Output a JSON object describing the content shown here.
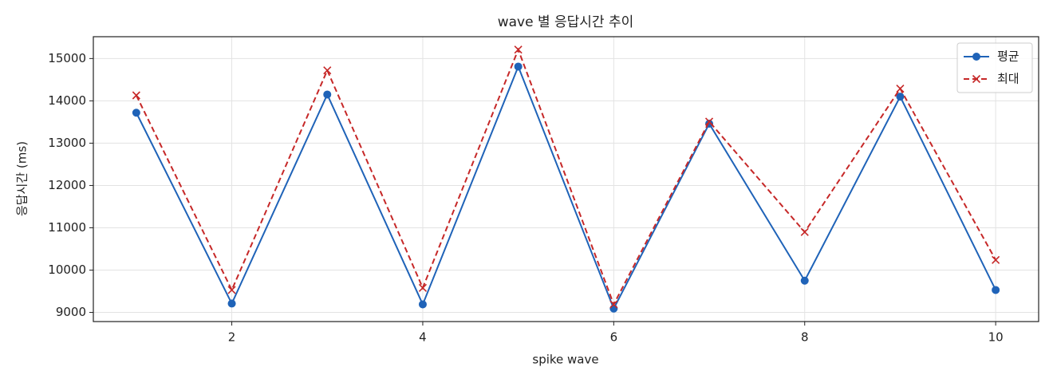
{
  "chart_data": {
    "type": "line",
    "title": "wave 별 응답시간 추이",
    "xlabel": "spike wave",
    "ylabel": "응답시간 (ms)",
    "x": [
      1,
      2,
      3,
      4,
      5,
      6,
      7,
      8,
      9,
      10
    ],
    "series": [
      {
        "name": "평균",
        "color": "#1f63b8",
        "marker": "o",
        "linestyle": "solid",
        "values": [
          13720,
          9210,
          14150,
          9190,
          14810,
          9090,
          13460,
          9750,
          14100,
          9530
        ]
      },
      {
        "name": "최대",
        "color": "#c62828",
        "marker": "x",
        "linestyle": "dashed",
        "values": [
          14130,
          9530,
          14720,
          9580,
          15210,
          9190,
          13510,
          10900,
          14290,
          10240
        ]
      }
    ],
    "xlim": [
      0.55,
      10.45
    ],
    "xticks": [
      2,
      4,
      6,
      8,
      10
    ],
    "ylim": [
      8784,
      15516
    ],
    "yticks": [
      9000,
      10000,
      11000,
      12000,
      13000,
      14000,
      15000
    ],
    "grid": true,
    "legend": "upper right"
  }
}
